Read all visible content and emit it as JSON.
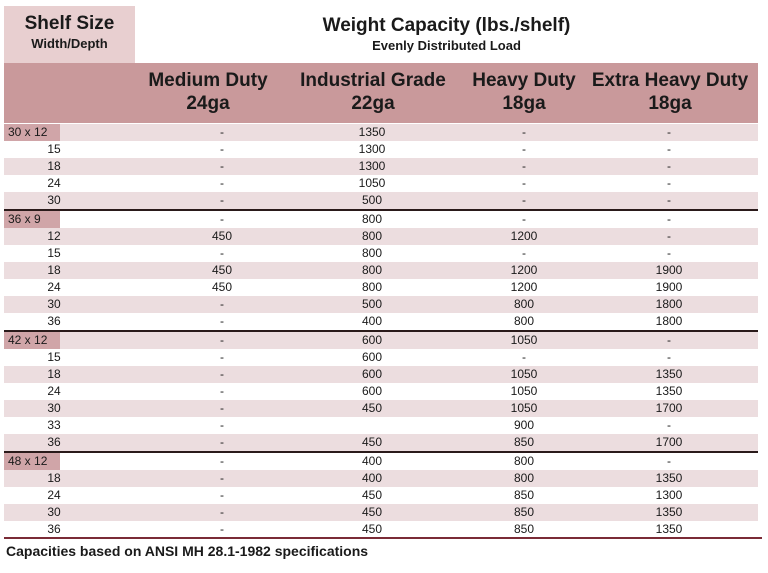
{
  "header": {
    "corner_title": "Shelf Size",
    "corner_sub": "Width/Depth",
    "title": "Weight Capacity (lbs./shelf)",
    "subtitle": "Evenly Distributed Load"
  },
  "columns": [
    {
      "line1": "Medium Duty",
      "line2": "24ga"
    },
    {
      "line1": "Industrial Grade",
      "line2": "22ga"
    },
    {
      "line1": "Heavy Duty",
      "line2": "18ga"
    },
    {
      "line1": "Extra Heavy Duty",
      "line2": "18ga"
    }
  ],
  "rows": [
    {
      "group": "30 x 12",
      "size": "",
      "v": [
        "-",
        "1350",
        "-",
        "-"
      ]
    },
    {
      "size": "15",
      "v": [
        "-",
        "1300",
        "-",
        "-"
      ]
    },
    {
      "size": "18",
      "v": [
        "-",
        "1300",
        "-",
        "-"
      ]
    },
    {
      "size": "24",
      "v": [
        "-",
        "1050",
        "-",
        "-"
      ]
    },
    {
      "size": "30",
      "v": [
        "-",
        "500",
        "-",
        "-"
      ]
    },
    {
      "group": "36 x 9",
      "size": "",
      "v": [
        "-",
        "800",
        "-",
        "-"
      ]
    },
    {
      "size": "12",
      "v": [
        "450",
        "800",
        "1200",
        "-"
      ]
    },
    {
      "size": "15",
      "v": [
        "-",
        "800",
        "-",
        "-"
      ]
    },
    {
      "size": "18",
      "v": [
        "450",
        "800",
        "1200",
        "1900"
      ]
    },
    {
      "size": "24",
      "v": [
        "450",
        "800",
        "1200",
        "1900"
      ]
    },
    {
      "size": "30",
      "v": [
        "-",
        "500",
        "800",
        "1800"
      ]
    },
    {
      "size": "36",
      "v": [
        "-",
        "400",
        "800",
        "1800"
      ]
    },
    {
      "group": "42 x 12",
      "size": "",
      "v": [
        "-",
        "600",
        "1050",
        "-"
      ]
    },
    {
      "size": "15",
      "v": [
        "-",
        "600",
        "-",
        "-"
      ]
    },
    {
      "size": "18",
      "v": [
        "-",
        "600",
        "1050",
        "1350"
      ]
    },
    {
      "size": "24",
      "v": [
        "-",
        "600",
        "1050",
        "1350"
      ]
    },
    {
      "size": "30",
      "v": [
        "-",
        "450",
        "1050",
        "1700"
      ]
    },
    {
      "size": "33",
      "v": [
        "-",
        "",
        "900",
        "-"
      ]
    },
    {
      "size": "36",
      "v": [
        "-",
        "450",
        "850",
        "1700"
      ]
    },
    {
      "group": "48 x 12",
      "size": "",
      "v": [
        "-",
        "400",
        "800",
        "-"
      ]
    },
    {
      "size": "18",
      "v": [
        "-",
        "400",
        "800",
        "1350"
      ]
    },
    {
      "size": "24",
      "v": [
        "-",
        "450",
        "850",
        "1300"
      ]
    },
    {
      "size": "30",
      "v": [
        "-",
        "450",
        "850",
        "1350"
      ]
    },
    {
      "size": "36",
      "v": [
        "-",
        "450",
        "850",
        "1350"
      ]
    }
  ],
  "footer": "Capacities based on ANSI MH 28.1-1982 specifications",
  "colors": {
    "header_bg": "#c9999b",
    "corner_bg": "#e8cfd0",
    "row_shade": "#ecdddf",
    "group_label_bg": "#d0a5a8",
    "footer_rule": "#7a2b36"
  }
}
